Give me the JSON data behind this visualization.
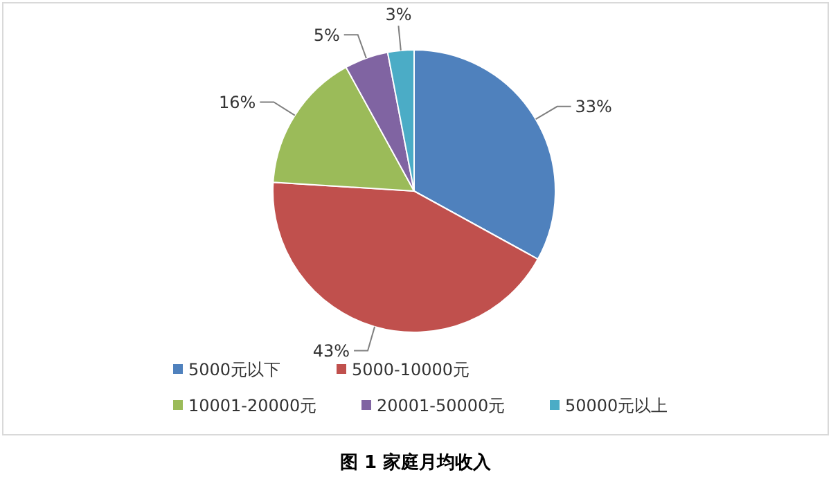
{
  "chart_data": {
    "type": "pie",
    "title": "图 1 家庭月均收入",
    "categories": [
      "5000元以下",
      "5000-10000元",
      "10001-20000元",
      "20001-50000元",
      "50000元以上"
    ],
    "values": [
      33,
      43,
      16,
      5,
      3
    ],
    "value_labels": [
      "33%",
      "43%",
      "16%",
      "5%",
      "3%"
    ],
    "colors": [
      "#4f81bd",
      "#c0504d",
      "#9bbb59",
      "#8064a2",
      "#4bacc6"
    ],
    "legend": "bottom"
  }
}
